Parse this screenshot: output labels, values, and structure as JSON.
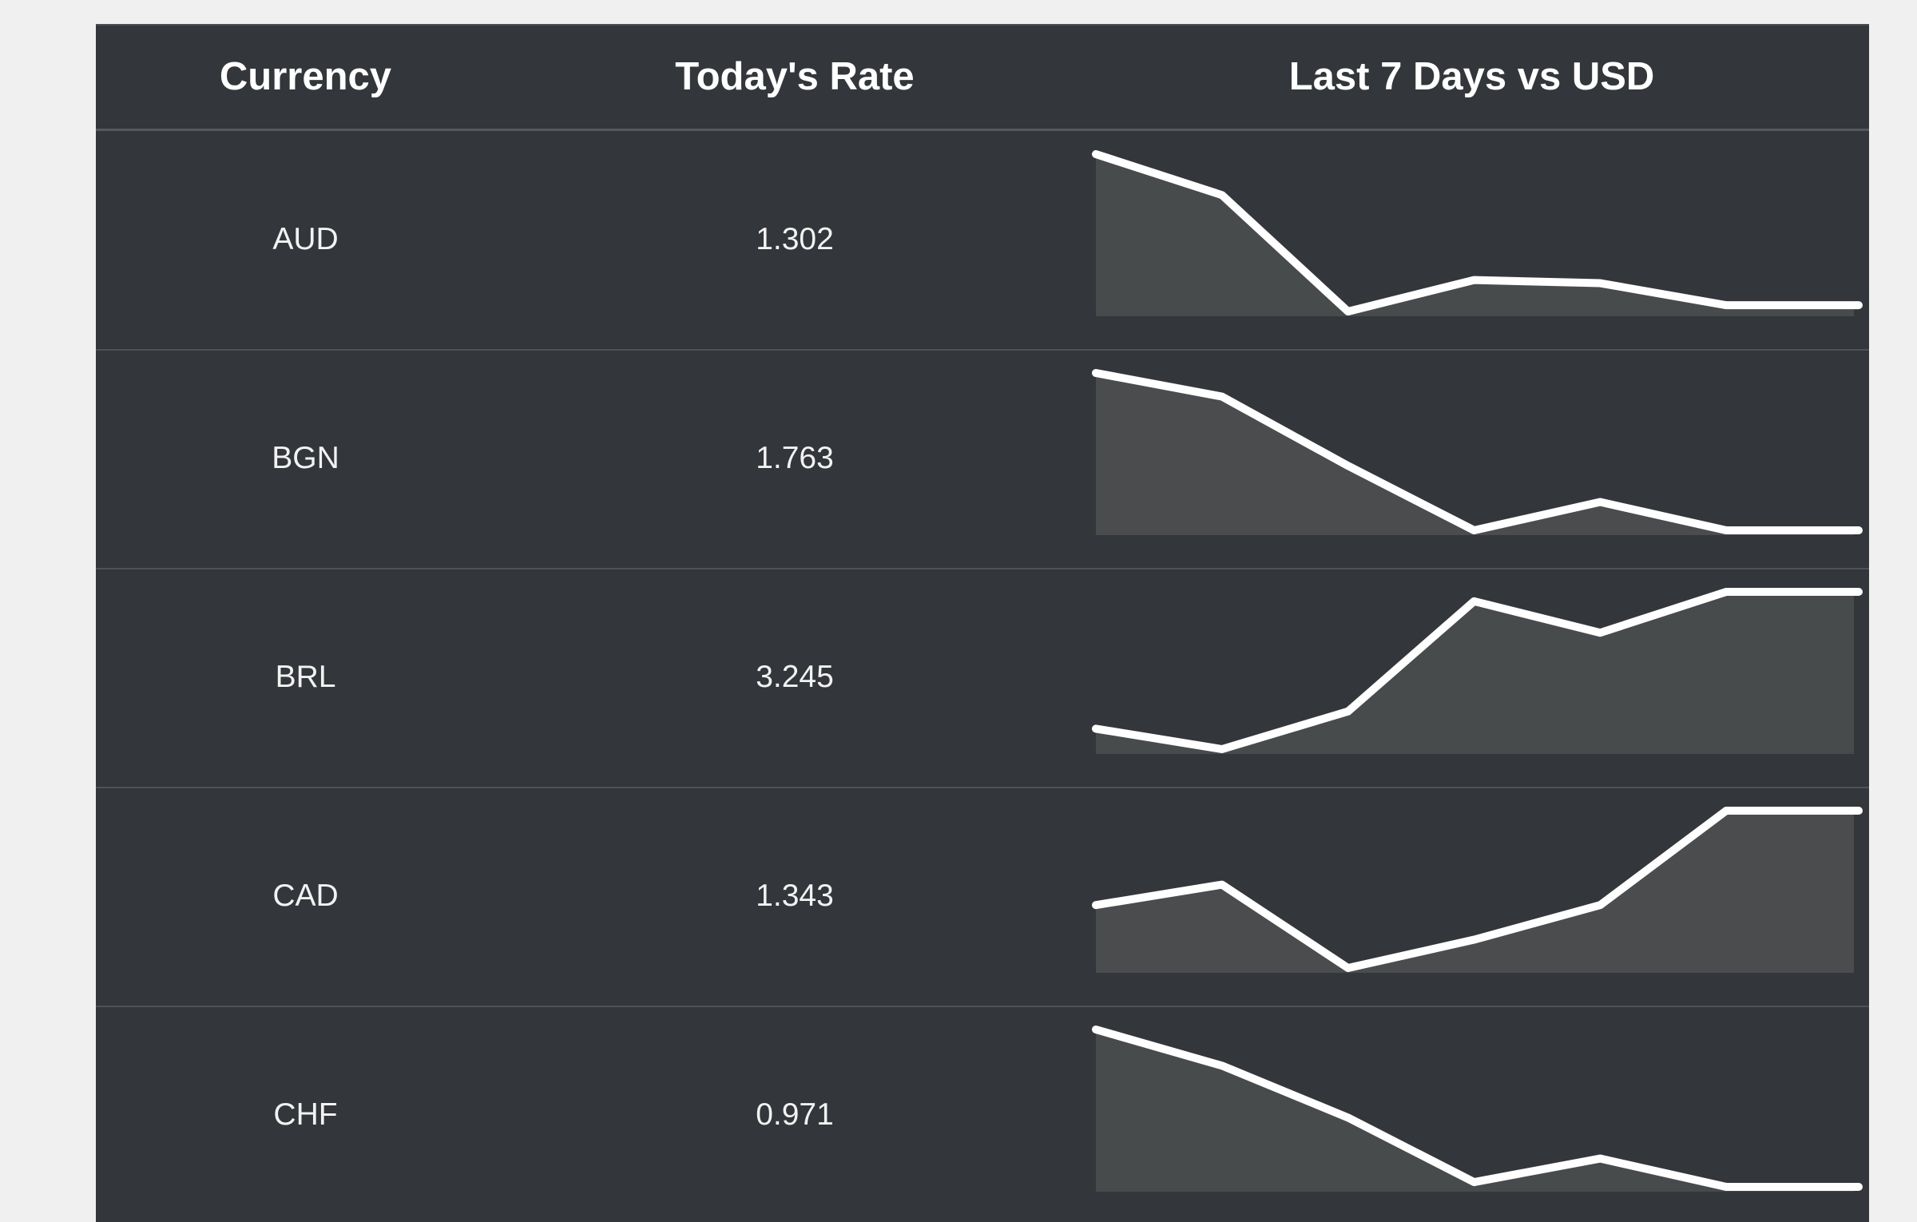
{
  "table": {
    "headers": {
      "currency": "Currency",
      "rate": "Today's Rate",
      "trend": "Last 7 Days vs USD"
    },
    "rows": [
      {
        "currency": "AUD",
        "rate": "1.302"
      },
      {
        "currency": "BGN",
        "rate": "1.763"
      },
      {
        "currency": "BRL",
        "rate": "3.245"
      },
      {
        "currency": "CAD",
        "rate": "1.343"
      },
      {
        "currency": "CHF",
        "rate": "0.971"
      }
    ]
  },
  "chart_data": [
    {
      "type": "area",
      "currency": "AUD",
      "days": 7,
      "values": [
        1.0,
        0.74,
        0.0,
        0.2,
        0.18,
        0.04,
        0.04
      ],
      "area_color": "#474b4c"
    },
    {
      "type": "area",
      "currency": "BGN",
      "days": 7,
      "values": [
        1.0,
        0.85,
        0.41,
        0.0,
        0.18,
        0.0,
        0.0
      ],
      "area_color": "#4b4c4e"
    },
    {
      "type": "area",
      "currency": "BRL",
      "days": 7,
      "values": [
        0.13,
        0.0,
        0.24,
        0.94,
        0.74,
        1.0,
        1.0
      ],
      "area_color": "#474b4c"
    },
    {
      "type": "area",
      "currency": "CAD",
      "days": 7,
      "values": [
        0.4,
        0.53,
        0.0,
        0.18,
        0.4,
        1.0,
        1.0
      ],
      "area_color": "#4b4c4e"
    },
    {
      "type": "area",
      "currency": "CHF",
      "days": 7,
      "values": [
        1.0,
        0.77,
        0.44,
        0.03,
        0.18,
        0.0,
        0.0
      ],
      "area_color": "#474b4c"
    }
  ],
  "colors": {
    "table_bg": "#33363a",
    "line": "#ffffff",
    "page_bg": "#f0f0f0"
  }
}
